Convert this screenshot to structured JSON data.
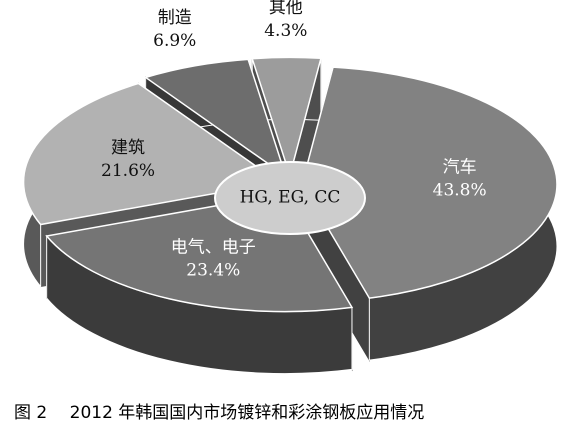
{
  "chart_data": {
    "type": "pie",
    "categories": [
      "汽车",
      "电气、电子",
      "建筑",
      "制造",
      "其他"
    ],
    "values": [
      43.8,
      23.4,
      21.6,
      6.9,
      4.3
    ],
    "value_labels": [
      "43.8%",
      "23.4%",
      "21.6%",
      "6.9%",
      "4.3%"
    ],
    "colors": [
      "#828282",
      "#757575",
      "#b2b2b2",
      "#6d6d6d",
      "#9c9c9c"
    ],
    "center_label": "HG, EG, CC",
    "caption": "图 2　 2012 年韩国国内市场镀锌和彩涂钢板应用情况"
  }
}
